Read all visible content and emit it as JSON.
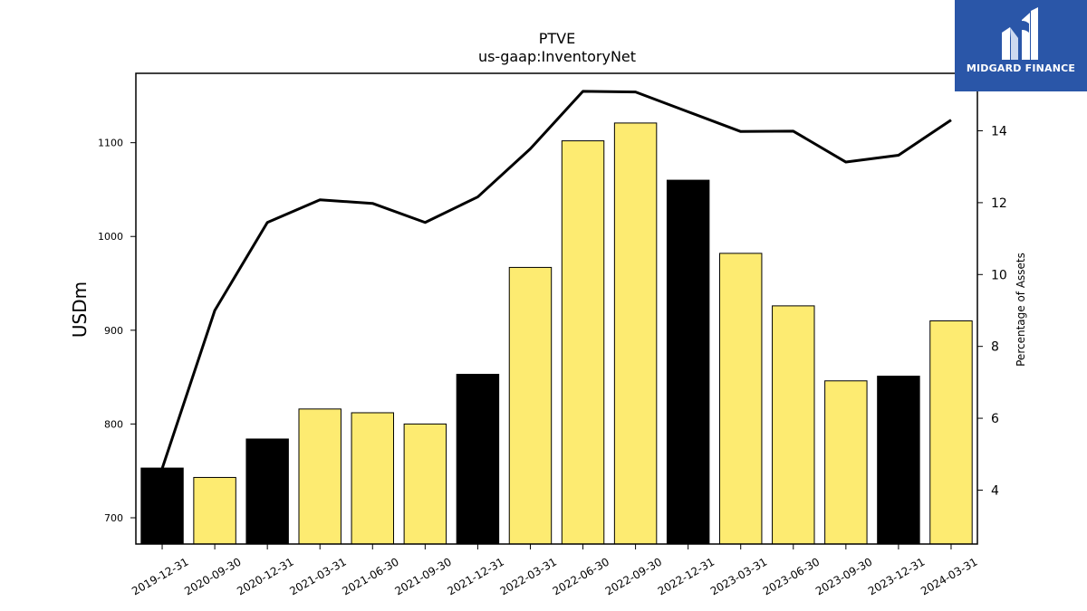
{
  "chart_data": {
    "type": "bar",
    "title": "PTVE",
    "subtitle": "us-gaap:InventoryNet",
    "ylabel": "USDm",
    "y2label": "Percentage of Assets",
    "categories": [
      "2019-12-31",
      "2020-09-30",
      "2020-12-31",
      "2021-03-31",
      "2021-06-30",
      "2021-09-30",
      "2021-12-31",
      "2022-03-31",
      "2022-06-30",
      "2022-09-30",
      "2022-12-31",
      "2023-03-31",
      "2023-06-30",
      "2023-09-30",
      "2023-12-31",
      "2024-03-31"
    ],
    "series": [
      {
        "type": "bar",
        "axis": "left",
        "values": [
          753,
          743,
          784,
          816,
          812,
          800,
          853,
          967,
          1102,
          1121,
          1060,
          982,
          926,
          846,
          851,
          910
        ],
        "bar_colors": [
          "#000000",
          "#fdeb71",
          "#000000",
          "#fdeb71",
          "#fdeb71",
          "#fdeb71",
          "#000000",
          "#fdeb71",
          "#fdeb71",
          "#fdeb71",
          "#000000",
          "#fdeb71",
          "#fdeb71",
          "#fdeb71",
          "#000000",
          "#fdeb71"
        ]
      },
      {
        "type": "line",
        "axis": "right",
        "color": "#000000",
        "values": [
          4.6,
          9.0,
          11.45,
          12.08,
          11.98,
          11.45,
          12.16,
          13.5,
          15.1,
          15.08,
          14.53,
          13.98,
          13.99,
          13.13,
          13.32,
          14.3
        ]
      }
    ],
    "y_ticks": [
      700,
      800,
      900,
      1000,
      1100
    ],
    "ylim": [
      672,
      1174
    ],
    "y2_ticks": [
      4,
      6,
      8,
      10,
      12,
      14
    ],
    "y2lim": [
      2.5,
      15.6
    ],
    "grid": false,
    "legend": "none"
  },
  "logo": {
    "text": "MIDGARD FINANCE",
    "background": "#2a56a8",
    "icon": "midgard-logo-icon"
  }
}
